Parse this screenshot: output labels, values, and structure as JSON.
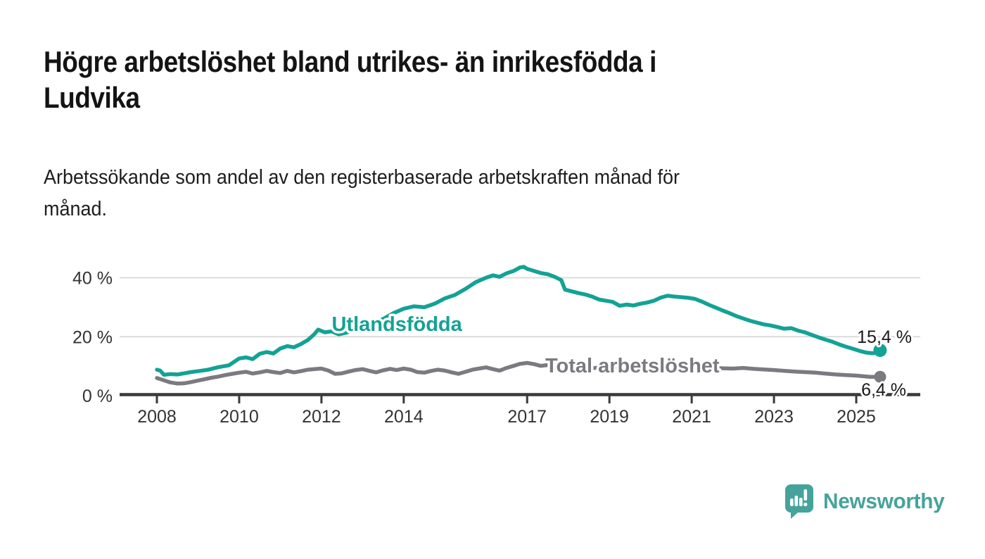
{
  "header": {
    "title_line1": "Högre arbetslöshet bland utrikes- än inrikesfödda i",
    "title_line2": "Ludvika",
    "subtitle_line1": "Arbetssökande som andel av den registerbaserade arbetskraften månad för",
    "subtitle_line2": "månad."
  },
  "footer": {
    "brand": "Newsworthy"
  },
  "colors": {
    "accent_teal": "#13a295",
    "logo_teal": "#46a39c",
    "series_gray": "#7c7a80",
    "axis_dark": "#3a3a3a",
    "tick_text": "#333333",
    "gridline": "#dcdcdc",
    "value_label_text": "#1a1a1a"
  },
  "chart_data": {
    "type": "line",
    "title": "Högre arbetslöshet bland utrikes- än inrikesfödda i Ludvika",
    "subtitle": "Arbetssökande som andel av den registerbaserade arbetskraften månad för månad.",
    "xlabel": "",
    "ylabel": "",
    "grid": "horizontal",
    "legend_position": "inline-labels",
    "xlim": [
      2007.8,
      2025.9
    ],
    "ylim": [
      0,
      45
    ],
    "x_tick_values": [
      2008,
      2010,
      2012,
      2014,
      2017,
      2019,
      2021,
      2023,
      2025
    ],
    "x_tick_labels": [
      "2008",
      "2010",
      "2012",
      "2014",
      "2017",
      "2019",
      "2021",
      "2023",
      "2025"
    ],
    "y_tick_values": [
      0,
      20,
      40
    ],
    "y_tick_labels": [
      "0 %",
      "20 %",
      "40 %"
    ],
    "y_gridline_values": [
      20,
      40
    ],
    "series": [
      {
        "name": "Utlandsfödda",
        "color": "#13a295",
        "end_label": "15,4 %",
        "end_value": 15.4,
        "label_pos": [
          2012.25,
          22.0
        ],
        "points": [
          [
            2008,
            8.8
          ],
          [
            2008.08,
            8.5
          ],
          [
            2008.17,
            7.1
          ],
          [
            2008.33,
            7.3
          ],
          [
            2008.5,
            7.2
          ],
          [
            2008.67,
            7.6
          ],
          [
            2008.83,
            8
          ],
          [
            2009,
            8.3
          ],
          [
            2009.25,
            8.8
          ],
          [
            2009.5,
            9.7
          ],
          [
            2009.75,
            10.3
          ],
          [
            2010,
            12.6
          ],
          [
            2010.17,
            13
          ],
          [
            2010.33,
            12.4
          ],
          [
            2010.5,
            14.2
          ],
          [
            2010.67,
            14.8
          ],
          [
            2010.83,
            14.3
          ],
          [
            2011,
            16
          ],
          [
            2011.17,
            16.8
          ],
          [
            2011.33,
            16.4
          ],
          [
            2011.5,
            17.5
          ],
          [
            2011.67,
            18.9
          ],
          [
            2011.83,
            20.9
          ],
          [
            2011.92,
            22.4
          ],
          [
            2012.08,
            21.5
          ],
          [
            2012.25,
            21.8
          ],
          [
            2012.42,
            20.8
          ],
          [
            2012.58,
            21.3
          ],
          [
            2012.75,
            22
          ],
          [
            2013,
            23.3
          ],
          [
            2013.25,
            24.6
          ],
          [
            2013.5,
            26
          ],
          [
            2013.75,
            28
          ],
          [
            2014,
            29.5
          ],
          [
            2014.25,
            30.3
          ],
          [
            2014.5,
            30
          ],
          [
            2014.75,
            31.2
          ],
          [
            2015,
            33
          ],
          [
            2015.25,
            34.2
          ],
          [
            2015.5,
            36.2
          ],
          [
            2015.75,
            38.5
          ],
          [
            2016,
            40
          ],
          [
            2016.17,
            40.8
          ],
          [
            2016.33,
            40.3
          ],
          [
            2016.5,
            41.5
          ],
          [
            2016.67,
            42.3
          ],
          [
            2016.83,
            43.5
          ],
          [
            2016.92,
            43.7
          ],
          [
            2017,
            43
          ],
          [
            2017.17,
            42.3
          ],
          [
            2017.33,
            41.6
          ],
          [
            2017.5,
            41.2
          ],
          [
            2017.67,
            40.3
          ],
          [
            2017.83,
            39.2
          ],
          [
            2017.92,
            36
          ],
          [
            2018.08,
            35.4
          ],
          [
            2018.25,
            34.8
          ],
          [
            2018.42,
            34.3
          ],
          [
            2018.58,
            33.6
          ],
          [
            2018.75,
            32.6
          ],
          [
            2018.92,
            32.2
          ],
          [
            2019.08,
            31.8
          ],
          [
            2019.25,
            30.5
          ],
          [
            2019.42,
            30.9
          ],
          [
            2019.58,
            30.6
          ],
          [
            2019.75,
            31.2
          ],
          [
            2019.92,
            31.6
          ],
          [
            2020.08,
            32.2
          ],
          [
            2020.25,
            33.3
          ],
          [
            2020.42,
            33.9
          ],
          [
            2020.58,
            33.6
          ],
          [
            2020.75,
            33.4
          ],
          [
            2020.92,
            33.2
          ],
          [
            2021.08,
            32.8
          ],
          [
            2021.25,
            31.9
          ],
          [
            2021.42,
            30.8
          ],
          [
            2021.58,
            29.9
          ],
          [
            2021.75,
            28.9
          ],
          [
            2021.92,
            28
          ],
          [
            2022.08,
            27
          ],
          [
            2022.25,
            26.2
          ],
          [
            2022.42,
            25.4
          ],
          [
            2022.58,
            24.8
          ],
          [
            2022.75,
            24.2
          ],
          [
            2022.92,
            23.8
          ],
          [
            2023.08,
            23.3
          ],
          [
            2023.25,
            22.7
          ],
          [
            2023.42,
            22.9
          ],
          [
            2023.58,
            22.1
          ],
          [
            2023.75,
            21.5
          ],
          [
            2023.92,
            20.6
          ],
          [
            2024.08,
            19.8
          ],
          [
            2024.25,
            19
          ],
          [
            2024.42,
            18.3
          ],
          [
            2024.58,
            17.4
          ],
          [
            2024.75,
            16.6
          ],
          [
            2024.92,
            15.9
          ],
          [
            2025.08,
            15.2
          ],
          [
            2025.25,
            14.6
          ],
          [
            2025.42,
            14.4
          ],
          [
            2025.58,
            15.4
          ]
        ]
      },
      {
        "name": "Total arbetslöshet",
        "color": "#7c7a80",
        "end_label": "6,4 %",
        "end_value": 6.4,
        "label_pos": [
          2017.44,
          7.9
        ],
        "points": [
          [
            2008,
            6
          ],
          [
            2008.17,
            5.2
          ],
          [
            2008.33,
            4.5
          ],
          [
            2008.5,
            4.1
          ],
          [
            2008.67,
            4.2
          ],
          [
            2008.83,
            4.6
          ],
          [
            2009,
            5.1
          ],
          [
            2009.17,
            5.6
          ],
          [
            2009.33,
            6.1
          ],
          [
            2009.5,
            6.5
          ],
          [
            2009.67,
            7
          ],
          [
            2009.83,
            7.4
          ],
          [
            2010,
            7.8
          ],
          [
            2010.17,
            8.1
          ],
          [
            2010.33,
            7.5
          ],
          [
            2010.5,
            7.9
          ],
          [
            2010.67,
            8.4
          ],
          [
            2010.83,
            8
          ],
          [
            2011,
            7.7
          ],
          [
            2011.17,
            8.4
          ],
          [
            2011.33,
            7.9
          ],
          [
            2011.5,
            8.3
          ],
          [
            2011.67,
            8.8
          ],
          [
            2011.83,
            9
          ],
          [
            2012,
            9.2
          ],
          [
            2012.17,
            8.5
          ],
          [
            2012.33,
            7.4
          ],
          [
            2012.5,
            7.6
          ],
          [
            2012.67,
            8.2
          ],
          [
            2012.83,
            8.7
          ],
          [
            2013,
            9
          ],
          [
            2013.17,
            8.4
          ],
          [
            2013.33,
            7.9
          ],
          [
            2013.5,
            8.6
          ],
          [
            2013.67,
            9.1
          ],
          [
            2013.83,
            8.7
          ],
          [
            2014,
            9.2
          ],
          [
            2014.17,
            8.8
          ],
          [
            2014.33,
            8
          ],
          [
            2014.5,
            7.8
          ],
          [
            2014.67,
            8.4
          ],
          [
            2014.83,
            8.8
          ],
          [
            2015,
            8.5
          ],
          [
            2015.17,
            7.9
          ],
          [
            2015.33,
            7.4
          ],
          [
            2015.5,
            8.1
          ],
          [
            2015.67,
            8.8
          ],
          [
            2015.83,
            9.2
          ],
          [
            2016,
            9.6
          ],
          [
            2016.17,
            9
          ],
          [
            2016.33,
            8.5
          ],
          [
            2016.5,
            9.4
          ],
          [
            2016.67,
            10.1
          ],
          [
            2016.83,
            10.8
          ],
          [
            2017,
            11.1
          ],
          [
            2017.17,
            10.7
          ],
          [
            2017.33,
            10.1
          ],
          [
            2017.5,
            10.4
          ],
          [
            2017.67,
            10.7
          ],
          [
            2017.83,
            10.3
          ],
          [
            2018,
            9.9
          ],
          [
            2018.25,
            9.5
          ],
          [
            2018.5,
            9.3
          ],
          [
            2018.75,
            9.5
          ],
          [
            2019,
            9.7
          ],
          [
            2019.25,
            9.3
          ],
          [
            2019.5,
            9.1
          ],
          [
            2019.75,
            9.4
          ],
          [
            2020,
            9.8
          ],
          [
            2020.25,
            10.2
          ],
          [
            2020.5,
            10.4
          ],
          [
            2020.75,
            10.1
          ],
          [
            2021,
            9.9
          ],
          [
            2021.25,
            9.6
          ],
          [
            2021.5,
            9.4
          ],
          [
            2021.75,
            9.3
          ],
          [
            2022,
            9.2
          ],
          [
            2022.25,
            9.4
          ],
          [
            2022.5,
            9.1
          ],
          [
            2022.75,
            8.9
          ],
          [
            2023,
            8.7
          ],
          [
            2023.25,
            8.4
          ],
          [
            2023.5,
            8.2
          ],
          [
            2023.75,
            8
          ],
          [
            2024,
            7.8
          ],
          [
            2024.25,
            7.5
          ],
          [
            2024.5,
            7.2
          ],
          [
            2024.75,
            7
          ],
          [
            2025,
            6.8
          ],
          [
            2025.17,
            6.6
          ],
          [
            2025.33,
            6.4
          ],
          [
            2025.58,
            6.4
          ]
        ]
      }
    ]
  }
}
